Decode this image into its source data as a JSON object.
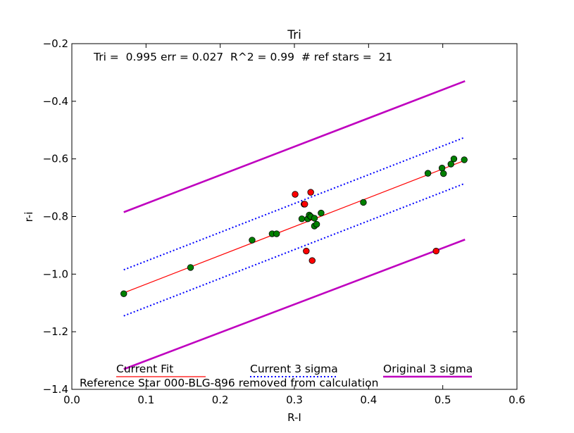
{
  "chart_data": {
    "type": "scatter",
    "title": "Tri",
    "xlabel": "R-I",
    "ylabel": "r-i",
    "xlim": [
      0.0,
      0.6
    ],
    "ylim": [
      -1.4,
      -0.2
    ],
    "xticks": [
      0.0,
      0.1,
      0.2,
      0.3,
      0.4,
      0.5,
      0.6
    ],
    "yticks": [
      -1.4,
      -1.2,
      -1.0,
      -0.8,
      -0.6,
      -0.4,
      -0.2
    ],
    "xtick_labels": [
      "0.0",
      "0.1",
      "0.2",
      "0.3",
      "0.4",
      "0.5",
      "0.6"
    ],
    "ytick_labels": [
      "−1.4",
      "−1.2",
      "−1.0",
      "−0.8",
      "−0.6",
      "−0.4",
      "−0.2"
    ],
    "annotation": "Tri =  0.995 err = 0.027  R^2 = 0.99  # ref stars =  21",
    "footnote": "Reference Star 000-BLG-896 removed from calculation",
    "colors": {
      "current_fit": "#ff0000",
      "current_sigma": "#0000ff",
      "original_sigma": "#bf00bf",
      "kept_points": "#008000",
      "rejected_points": "#ff0000"
    },
    "series": [
      {
        "name": "Current Fit",
        "kind": "line",
        "style": "solid",
        "x": [
          0.07,
          0.53
        ],
        "y": [
          -1.065,
          -0.605
        ]
      },
      {
        "name": "Current 3 sigma upper",
        "kind": "line",
        "style": "dotted",
        "x": [
          0.07,
          0.53
        ],
        "y": [
          -0.985,
          -0.525
        ]
      },
      {
        "name": "Current 3 sigma lower",
        "kind": "line",
        "style": "dotted",
        "x": [
          0.07,
          0.53
        ],
        "y": [
          -1.145,
          -0.685
        ]
      },
      {
        "name": "Original 3 sigma upper",
        "kind": "line",
        "style": "solid",
        "x": [
          0.07,
          0.53
        ],
        "y": [
          -0.785,
          -0.33
        ]
      },
      {
        "name": "Original 3 sigma lower",
        "kind": "line",
        "style": "solid",
        "x": [
          0.07,
          0.53
        ],
        "y": [
          -1.33,
          -0.88
        ]
      },
      {
        "name": "Reference stars",
        "kind": "points",
        "x": [
          0.07,
          0.16,
          0.243,
          0.27,
          0.276,
          0.31,
          0.318,
          0.32,
          0.322,
          0.327,
          0.327,
          0.33,
          0.336,
          0.393,
          0.48,
          0.499,
          0.501,
          0.511,
          0.515,
          0.529
        ],
        "y": [
          -1.068,
          -0.977,
          -0.882,
          -0.86,
          -0.86,
          -0.808,
          -0.808,
          -0.795,
          -0.8,
          -0.833,
          -0.806,
          -0.827,
          -0.788,
          -0.751,
          -0.65,
          -0.632,
          -0.651,
          -0.618,
          -0.6,
          -0.603
        ]
      },
      {
        "name": "Rejected stars",
        "kind": "points",
        "x": [
          0.301,
          0.313,
          0.314,
          0.316,
          0.322,
          0.324,
          0.491
        ],
        "y": [
          -0.723,
          -0.757,
          -0.757,
          -0.92,
          -0.716,
          -0.953,
          -0.92
        ]
      }
    ],
    "legend": {
      "placement": "bottom",
      "entries": [
        {
          "label": "Current Fit",
          "style": "solid",
          "color": "#ff0000"
        },
        {
          "label": "Current 3 sigma",
          "style": "dotted",
          "color": "#0000ff"
        },
        {
          "label": "Original 3 sigma",
          "style": "solid-thick",
          "color": "#bf00bf"
        }
      ]
    }
  }
}
